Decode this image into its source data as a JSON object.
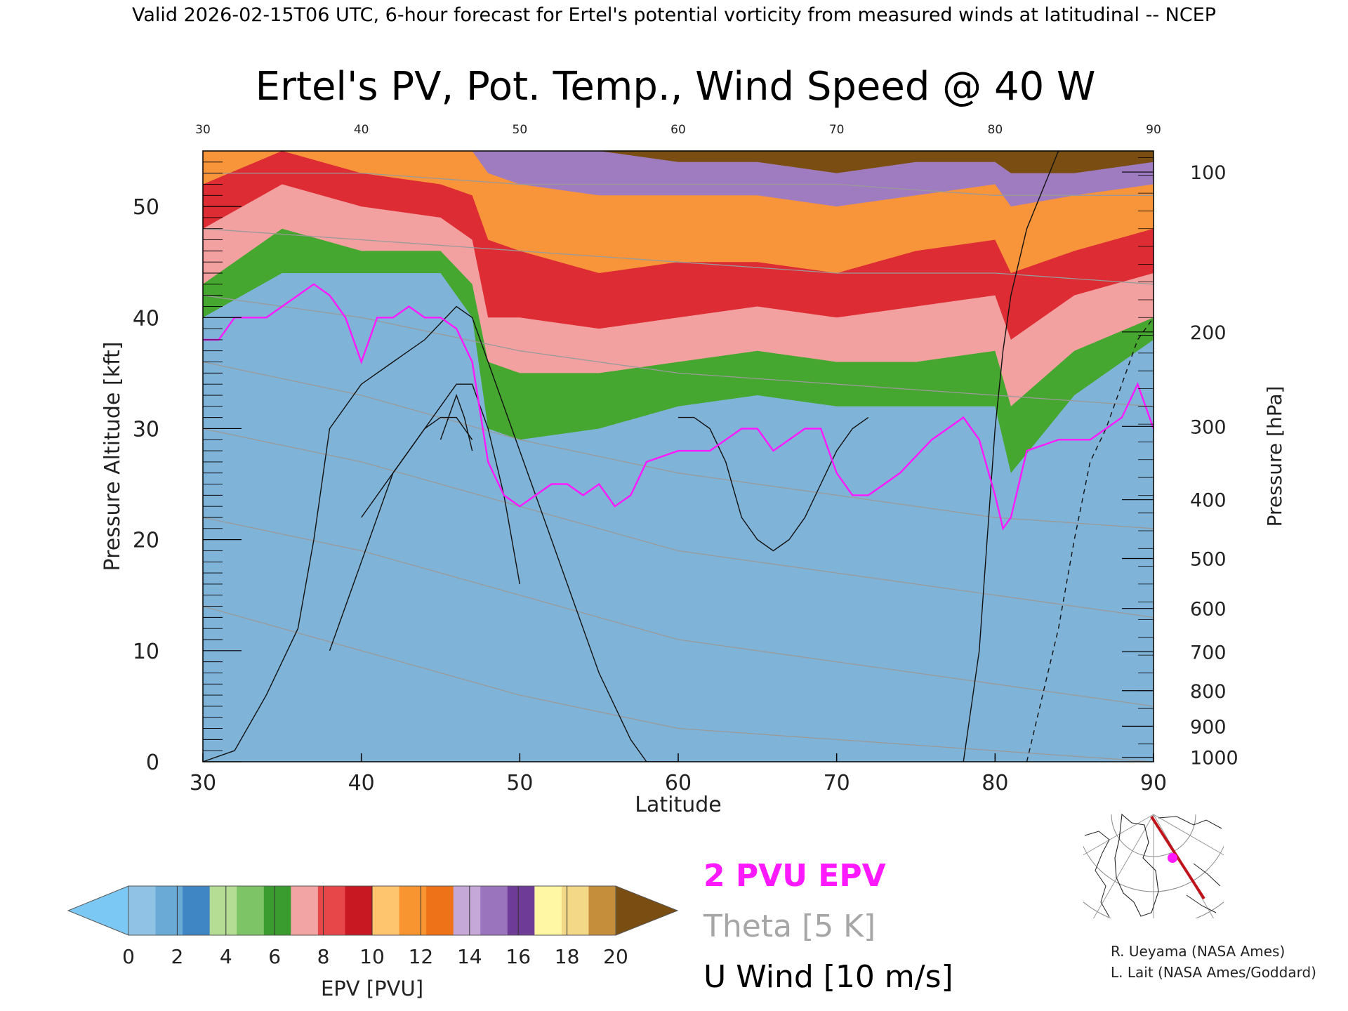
{
  "header": {
    "valid_line": "Valid 2026-02-15T06 UTC, 6-hour forecast for Ertel's potential vorticity from measured winds at latitudinal -- NCEP"
  },
  "chart_data": {
    "type": "heatmap",
    "title": "Ertel's PV, Pot. Temp., Wind Speed @ 40 W",
    "xlabel": "Latitude",
    "ylabel": "Pressure Altitude [kft]",
    "y2label": "Pressure [hPa]",
    "xlim": [
      30,
      90
    ],
    "ylim": [
      0,
      55
    ],
    "x_ticks": [
      "30",
      "40",
      "50",
      "60",
      "70",
      "80",
      "90"
    ],
    "top_x_ticks": [
      "30",
      "40",
      "50",
      "60",
      "70",
      "80",
      "90"
    ],
    "y_ticks": [
      "0",
      "10",
      "20",
      "30",
      "40",
      "50"
    ],
    "pressure_ticks": [
      {
        "label": "100",
        "kft": 53.1
      },
      {
        "label": "200",
        "kft": 38.7
      },
      {
        "label": "300",
        "kft": 30.2
      },
      {
        "label": "400",
        "kft": 23.6
      },
      {
        "label": "500",
        "kft": 18.3
      },
      {
        "label": "600",
        "kft": 13.8
      },
      {
        "label": "700",
        "kft": 9.9
      },
      {
        "label": "800",
        "kft": 6.4
      },
      {
        "label": "900",
        "kft": 3.2
      },
      {
        "label": "1000",
        "kft": 0.4
      }
    ],
    "colorbar": {
      "label": "EPV [PVU]",
      "ticks": [
        "0",
        "2",
        "4",
        "6",
        "8",
        "10",
        "12",
        "14",
        "16",
        "18",
        "20"
      ],
      "under_color": "#7cc8f5",
      "over_color": "#7a4e12",
      "colors": [
        "#8fc2e4",
        "#6aaad6",
        "#3f86c4",
        "#b5dd94",
        "#7cc466",
        "#3a9c2e",
        "#f2a3a3",
        "#e8474a",
        "#c81822",
        "#ffc56e",
        "#f99531",
        "#ee7218",
        "#c6a8d8",
        "#9a74bd",
        "#6e3b97",
        "#fff7a4",
        "#f2d887",
        "#c48e3a"
      ]
    },
    "tropopause": {
      "x": [
        30,
        31,
        32,
        34,
        35,
        36,
        37,
        38,
        39,
        40,
        41,
        42,
        43,
        44,
        45,
        46,
        47,
        48,
        49,
        50,
        51,
        52,
        53,
        54,
        55,
        56,
        57,
        58,
        60,
        62,
        63,
        64,
        65,
        66,
        68,
        69,
        70,
        71,
        72,
        74,
        76,
        77,
        78,
        79,
        80,
        80.5,
        81,
        82,
        84,
        86,
        88,
        89,
        90
      ],
      "y": [
        38,
        38,
        40,
        40,
        41,
        42,
        43,
        42,
        40,
        36,
        40,
        40,
        41,
        40,
        40,
        39,
        36,
        27,
        24,
        23,
        24,
        25,
        25,
        24,
        25,
        23,
        24,
        27,
        28,
        28,
        29,
        30,
        30,
        28,
        30,
        30,
        26,
        24,
        24,
        26,
        29,
        30,
        31,
        29,
        24,
        21,
        22,
        28,
        29,
        29,
        31,
        34,
        30
      ]
    },
    "pv_bands_kft": [
      {
        "pvu": 4,
        "x": [
          30,
          35,
          40,
          45,
          47,
          48,
          50,
          55,
          60,
          65,
          70,
          75,
          80,
          81,
          85,
          90
        ],
        "y": [
          40,
          44,
          44,
          44,
          40,
          30,
          29,
          30,
          32,
          33,
          32,
          32,
          32,
          26,
          33,
          38
        ]
      },
      {
        "pvu": 6,
        "x": [
          30,
          35,
          40,
          45,
          47,
          48,
          50,
          55,
          60,
          65,
          70,
          75,
          80,
          81,
          85,
          90
        ],
        "y": [
          43,
          48,
          46,
          46,
          43,
          36,
          35,
          35,
          36,
          37,
          36,
          36,
          37,
          32,
          37,
          40
        ]
      },
      {
        "pvu": 8,
        "x": [
          30,
          35,
          40,
          45,
          47,
          48,
          50,
          55,
          60,
          65,
          70,
          75,
          80,
          81,
          85,
          90
        ],
        "y": [
          48,
          52,
          50,
          49,
          47,
          40,
          40,
          39,
          40,
          41,
          40,
          41,
          42,
          38,
          42,
          44
        ]
      },
      {
        "pvu": 11,
        "x": [
          30,
          35,
          40,
          45,
          47,
          48,
          50,
          55,
          60,
          65,
          70,
          75,
          80,
          81,
          85,
          90
        ],
        "y": [
          52,
          55,
          53,
          52,
          51,
          47,
          46,
          44,
          45,
          45,
          44,
          46,
          47,
          44,
          46,
          48
        ]
      },
      {
        "pvu": 14,
        "x": [
          30,
          35,
          40,
          45,
          47,
          48,
          50,
          55,
          60,
          65,
          70,
          75,
          80,
          81,
          85,
          90
        ],
        "y": [
          55,
          56,
          56,
          56,
          55,
          53,
          52,
          51,
          51,
          51,
          50,
          51,
          52,
          50,
          51,
          52
        ]
      },
      {
        "pvu": 17,
        "x": [
          30,
          35,
          40,
          45,
          47,
          48,
          50,
          55,
          60,
          65,
          70,
          75,
          80,
          81,
          85,
          90
        ],
        "y": [
          56,
          57,
          57,
          57,
          57,
          56,
          56,
          55,
          54,
          54,
          53,
          54,
          54,
          53,
          53,
          54
        ]
      }
    ],
    "theta_contours_K": [
      {
        "theta": 290,
        "x": [
          30,
          40,
          50,
          60,
          70,
          80,
          90
        ],
        "y": [
          14,
          10,
          6,
          3,
          2,
          1,
          0
        ]
      },
      {
        "theta": 300,
        "x": [
          30,
          40,
          50,
          60,
          70,
          80,
          90
        ],
        "y": [
          22,
          19,
          15,
          11,
          9,
          7,
          5
        ]
      },
      {
        "theta": 310,
        "x": [
          30,
          40,
          50,
          60,
          70,
          80,
          90
        ],
        "y": [
          30,
          27,
          23,
          19,
          17,
          15,
          13
        ]
      },
      {
        "theta": 320,
        "x": [
          30,
          40,
          50,
          60,
          70,
          80,
          90
        ],
        "y": [
          36,
          33,
          29,
          26,
          24,
          22,
          21
        ]
      },
      {
        "theta": 340,
        "x": [
          30,
          40,
          50,
          60,
          70,
          80,
          90
        ],
        "y": [
          42,
          40,
          37,
          35,
          34,
          33,
          32
        ]
      },
      {
        "theta": 370,
        "x": [
          30,
          40,
          50,
          60,
          70,
          80,
          90
        ],
        "y": [
          48,
          47,
          46,
          45,
          44,
          44,
          43
        ]
      },
      {
        "theta": 400,
        "x": [
          30,
          40,
          50,
          60,
          70,
          80,
          90
        ],
        "y": [
          53,
          53,
          52,
          52,
          52,
          51,
          51
        ]
      }
    ],
    "u_wind_contours_ms": [
      {
        "speed": 10,
        "x": [
          30,
          32,
          34,
          36,
          37,
          38,
          40,
          42,
          44,
          46,
          47,
          48,
          50,
          52,
          54,
          55,
          56,
          57,
          58,
          60
        ],
        "y": [
          0,
          1,
          6,
          12,
          20,
          30,
          34,
          36,
          38,
          41,
          40,
          36,
          28,
          20,
          12,
          8,
          5,
          2,
          0,
          0
        ]
      },
      {
        "speed": 30,
        "x": [
          38,
          40,
          42,
          44,
          45,
          46,
          47,
          48,
          49,
          50
        ],
        "y": [
          10,
          18,
          26,
          30,
          32,
          34,
          34,
          30,
          24,
          16
        ]
      },
      {
        "speed": 50,
        "x": [
          40,
          42,
          43,
          44,
          45,
          46,
          47
        ],
        "y": [
          22,
          26,
          28,
          30,
          31,
          31,
          29
        ]
      },
      {
        "speed": 70,
        "x": [
          45,
          45.5,
          46,
          46.5,
          47
        ],
        "y": [
          29,
          31,
          33,
          31,
          28
        ]
      },
      {
        "speed": 10,
        "x": [
          60,
          61,
          62,
          63,
          64,
          65,
          66,
          67,
          68,
          69,
          70,
          71,
          72
        ],
        "y": [
          31,
          31,
          30,
          27,
          22,
          20,
          19,
          20,
          22,
          25,
          28,
          30,
          31
        ]
      },
      {
        "speed": 10,
        "x": [
          78,
          79,
          79.5,
          80,
          80.5,
          81,
          82,
          84
        ],
        "y": [
          0,
          10,
          20,
          30,
          37,
          42,
          48,
          55
        ]
      },
      {
        "speed": -10,
        "x": [
          82,
          83,
          84,
          85,
          86,
          87,
          88,
          89,
          90
        ],
        "y": [
          0,
          6,
          12,
          20,
          27,
          30,
          34,
          38,
          40
        ]
      }
    ],
    "annotations": [
      "R. Ueyama (NASA Ames)",
      "L. Lait (NASA Ames/Goddard)"
    ]
  },
  "legend": {
    "pv_label": "2 PVU EPV",
    "pv_color": "#ff19ff",
    "theta_label": "Theta [5 K]",
    "theta_color": "#a6a6a6",
    "wind_label": "U Wind [10 m/s]",
    "wind_color": "#000000"
  },
  "credits": {
    "line1": "R. Ueyama (NASA Ames)",
    "line2": "L. Lait (NASA Ames/Goddard)"
  },
  "inset_map": {
    "marker_color": "#ff19ff",
    "track_color": "#c0141c"
  }
}
